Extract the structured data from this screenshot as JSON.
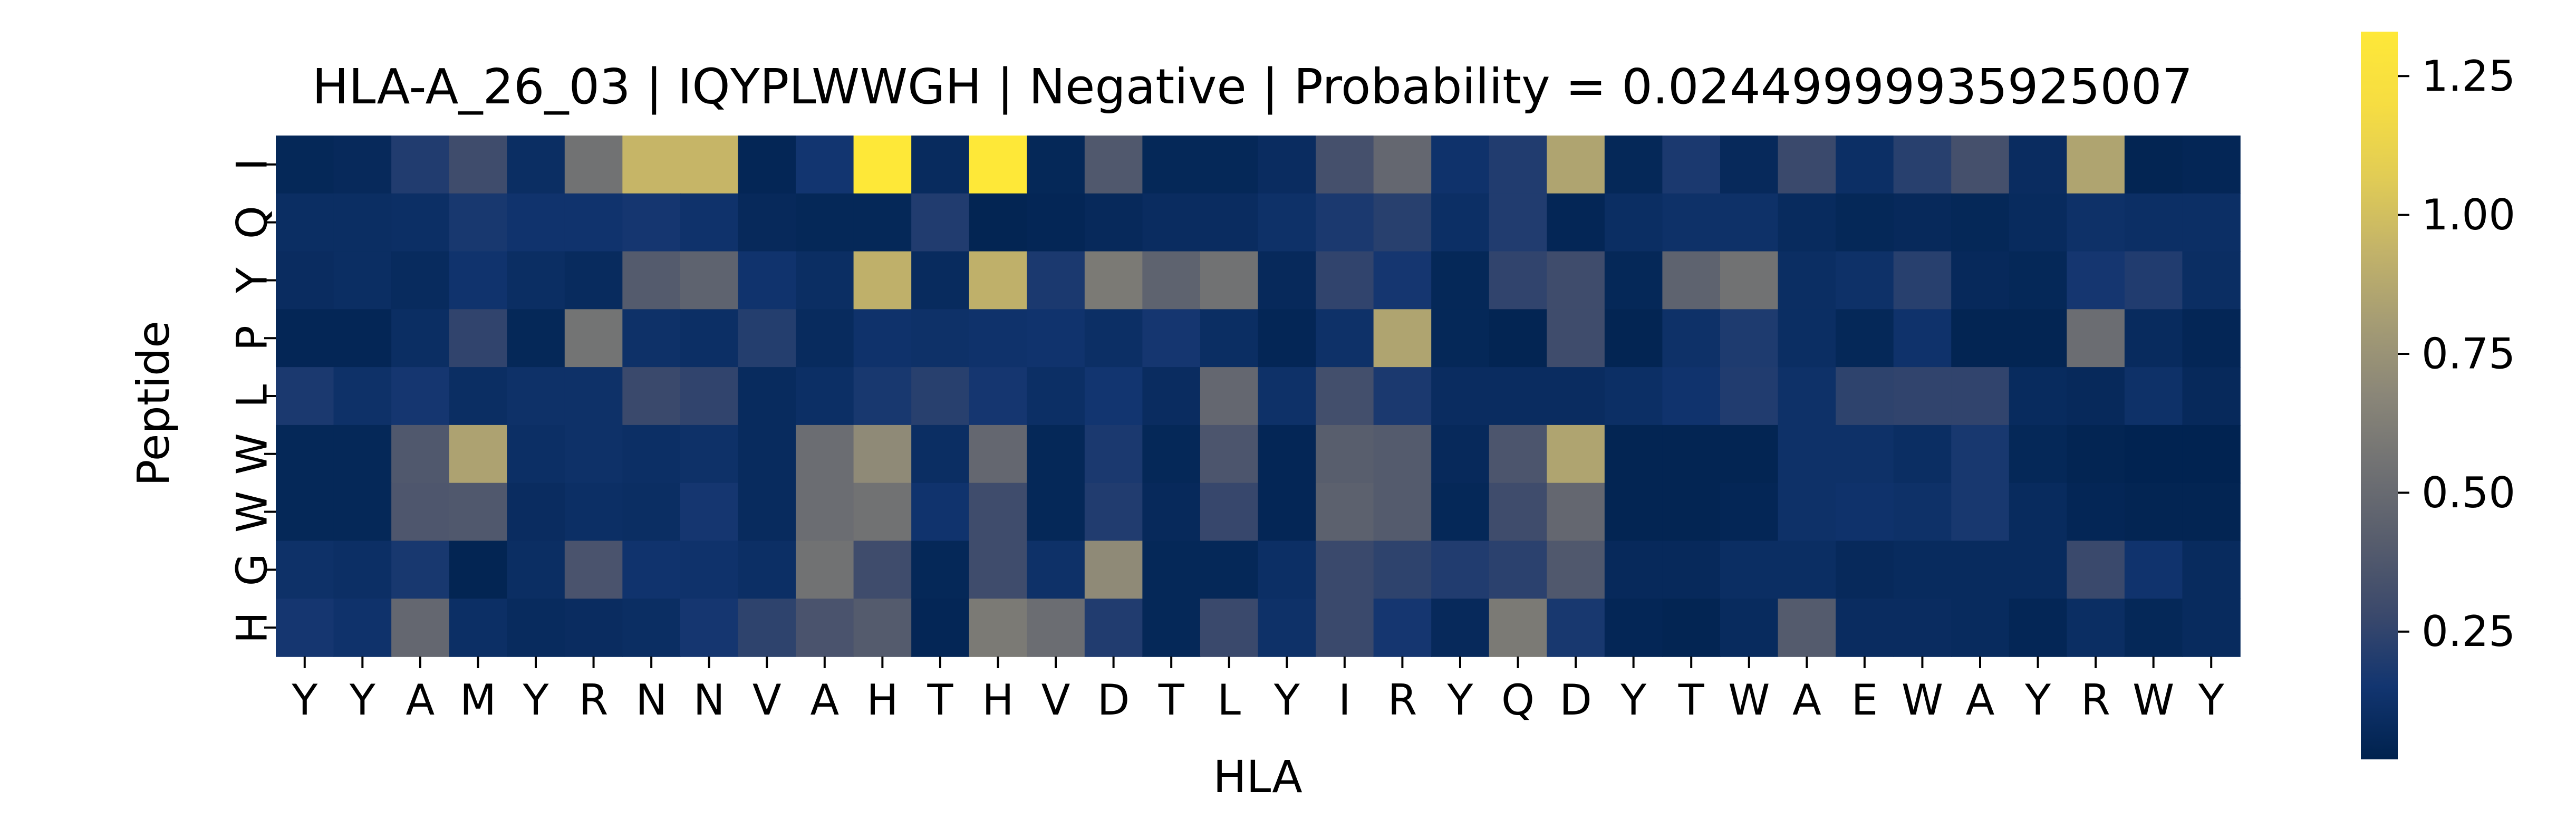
{
  "chart_data": {
    "type": "heatmap",
    "title": "HLA-A_26_03 | IQYPLWWGH | Negative | Probability = 0.02449999935925007",
    "xlabel": "HLA",
    "ylabel": "Peptide",
    "x_labels": [
      "Y",
      "Y",
      "A",
      "M",
      "Y",
      "R",
      "N",
      "N",
      "V",
      "A",
      "H",
      "T",
      "H",
      "V",
      "D",
      "T",
      "L",
      "Y",
      "I",
      "R",
      "Y",
      "Q",
      "D",
      "Y",
      "T",
      "W",
      "A",
      "E",
      "W",
      "A",
      "Y",
      "R",
      "W",
      "Y"
    ],
    "y_labels": [
      "I",
      "Q",
      "Y",
      "P",
      "L",
      "W",
      "W",
      "G",
      "H"
    ],
    "values": [
      [
        0.06,
        0.07,
        0.2,
        0.3,
        0.1,
        0.55,
        0.95,
        0.95,
        0.05,
        0.15,
        1.33,
        0.08,
        1.33,
        0.06,
        0.38,
        0.06,
        0.06,
        0.09,
        0.33,
        0.48,
        0.13,
        0.2,
        0.85,
        0.06,
        0.18,
        0.07,
        0.28,
        0.11,
        0.22,
        0.33,
        0.09,
        0.85,
        0.04,
        0.05
      ],
      [
        0.1,
        0.1,
        0.11,
        0.17,
        0.14,
        0.14,
        0.16,
        0.13,
        0.07,
        0.06,
        0.06,
        0.2,
        0.04,
        0.05,
        0.07,
        0.09,
        0.09,
        0.12,
        0.18,
        0.22,
        0.11,
        0.2,
        0.05,
        0.1,
        0.12,
        0.12,
        0.08,
        0.06,
        0.07,
        0.06,
        0.08,
        0.12,
        0.11,
        0.11
      ],
      [
        0.09,
        0.1,
        0.08,
        0.14,
        0.1,
        0.08,
        0.4,
        0.45,
        0.14,
        0.1,
        0.92,
        0.08,
        0.92,
        0.18,
        0.6,
        0.45,
        0.55,
        0.07,
        0.25,
        0.16,
        0.06,
        0.25,
        0.3,
        0.06,
        0.45,
        0.55,
        0.1,
        0.12,
        0.22,
        0.07,
        0.06,
        0.16,
        0.2,
        0.1
      ],
      [
        0.05,
        0.05,
        0.1,
        0.25,
        0.06,
        0.56,
        0.12,
        0.11,
        0.21,
        0.08,
        0.13,
        0.12,
        0.13,
        0.14,
        0.11,
        0.16,
        0.1,
        0.05,
        0.12,
        0.85,
        0.06,
        0.04,
        0.3,
        0.04,
        0.12,
        0.19,
        0.1,
        0.06,
        0.13,
        0.04,
        0.04,
        0.52,
        0.08,
        0.05
      ],
      [
        0.18,
        0.12,
        0.16,
        0.1,
        0.12,
        0.12,
        0.28,
        0.25,
        0.08,
        0.11,
        0.17,
        0.22,
        0.16,
        0.11,
        0.15,
        0.09,
        0.48,
        0.12,
        0.32,
        0.18,
        0.09,
        0.09,
        0.09,
        0.11,
        0.14,
        0.2,
        0.12,
        0.24,
        0.25,
        0.25,
        0.08,
        0.07,
        0.12,
        0.07
      ],
      [
        0.06,
        0.06,
        0.38,
        0.84,
        0.11,
        0.12,
        0.11,
        0.12,
        0.08,
        0.52,
        0.7,
        0.1,
        0.48,
        0.06,
        0.18,
        0.06,
        0.36,
        0.05,
        0.42,
        0.4,
        0.07,
        0.36,
        0.85,
        0.04,
        0.04,
        0.04,
        0.12,
        0.12,
        0.1,
        0.17,
        0.06,
        0.04,
        0.03,
        0.03
      ],
      [
        0.06,
        0.06,
        0.37,
        0.38,
        0.09,
        0.11,
        0.1,
        0.16,
        0.08,
        0.52,
        0.55,
        0.14,
        0.3,
        0.06,
        0.2,
        0.07,
        0.27,
        0.05,
        0.44,
        0.4,
        0.06,
        0.3,
        0.48,
        0.04,
        0.04,
        0.05,
        0.12,
        0.13,
        0.12,
        0.17,
        0.08,
        0.05,
        0.04,
        0.04
      ],
      [
        0.12,
        0.11,
        0.17,
        0.04,
        0.1,
        0.35,
        0.14,
        0.13,
        0.11,
        0.55,
        0.3,
        0.06,
        0.3,
        0.12,
        0.7,
        0.06,
        0.06,
        0.11,
        0.28,
        0.24,
        0.2,
        0.23,
        0.38,
        0.07,
        0.07,
        0.1,
        0.1,
        0.07,
        0.08,
        0.08,
        0.08,
        0.28,
        0.14,
        0.08
      ],
      [
        0.16,
        0.13,
        0.48,
        0.11,
        0.08,
        0.09,
        0.1,
        0.16,
        0.24,
        0.35,
        0.4,
        0.05,
        0.6,
        0.52,
        0.2,
        0.06,
        0.28,
        0.12,
        0.28,
        0.16,
        0.07,
        0.6,
        0.17,
        0.05,
        0.04,
        0.08,
        0.4,
        0.09,
        0.09,
        0.08,
        0.05,
        0.1,
        0.06,
        0.08
      ]
    ],
    "colorscale": "cividis",
    "vmin": 0.02,
    "vmax": 1.33,
    "colorbar_ticks": [
      "0.25",
      "0.50",
      "0.75",
      "1.00",
      "1.25"
    ]
  }
}
